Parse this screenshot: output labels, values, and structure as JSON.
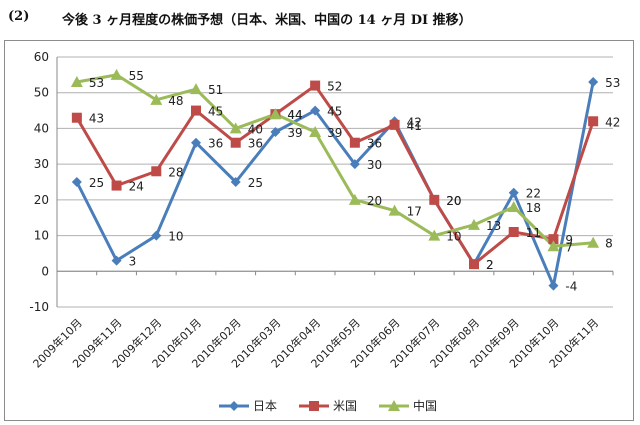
{
  "heading": {
    "number": "(2)",
    "text": "今後 3 ヶ月程度の株価予想（日本、米国、中国の 14 ヶ月 DI 推移）"
  },
  "colors": {
    "japan": "#4a7ebb",
    "usa": "#be4b48",
    "china": "#9bbb59",
    "negative_label": "#ff0000",
    "grid": "#b0b0b0"
  },
  "chart_data": {
    "type": "line",
    "title": "",
    "xlabel": "",
    "ylabel": "",
    "ylim": [
      -10,
      60
    ],
    "yticks": [
      -10,
      0,
      10,
      20,
      30,
      40,
      50,
      60
    ],
    "grid": true,
    "legend_position": "bottom",
    "categories": [
      "2009年10月",
      "2009年11月",
      "2009年12月",
      "2010年01月",
      "2010年02月",
      "2010年03月",
      "2010年04月",
      "2010年05月",
      "2010年06月",
      "2010年07月",
      "2010年08月",
      "2010年09月",
      "2010年10月",
      "2010年11月"
    ],
    "series": [
      {
        "name": "日本",
        "key": "japan",
        "marker": "diamond",
        "values": [
          25,
          3,
          10,
          36,
          25,
          39,
          45,
          30,
          42,
          20,
          2,
          22,
          -4,
          53
        ]
      },
      {
        "name": "米国",
        "key": "usa",
        "marker": "square",
        "values": [
          43,
          24,
          28,
          45,
          36,
          44,
          52,
          36,
          41,
          20,
          2,
          11,
          9,
          42
        ]
      },
      {
        "name": "中国",
        "key": "china",
        "marker": "triangle",
        "values": [
          53,
          55,
          48,
          51,
          40,
          44,
          39,
          20,
          17,
          10,
          13,
          18,
          7,
          8
        ]
      }
    ]
  }
}
